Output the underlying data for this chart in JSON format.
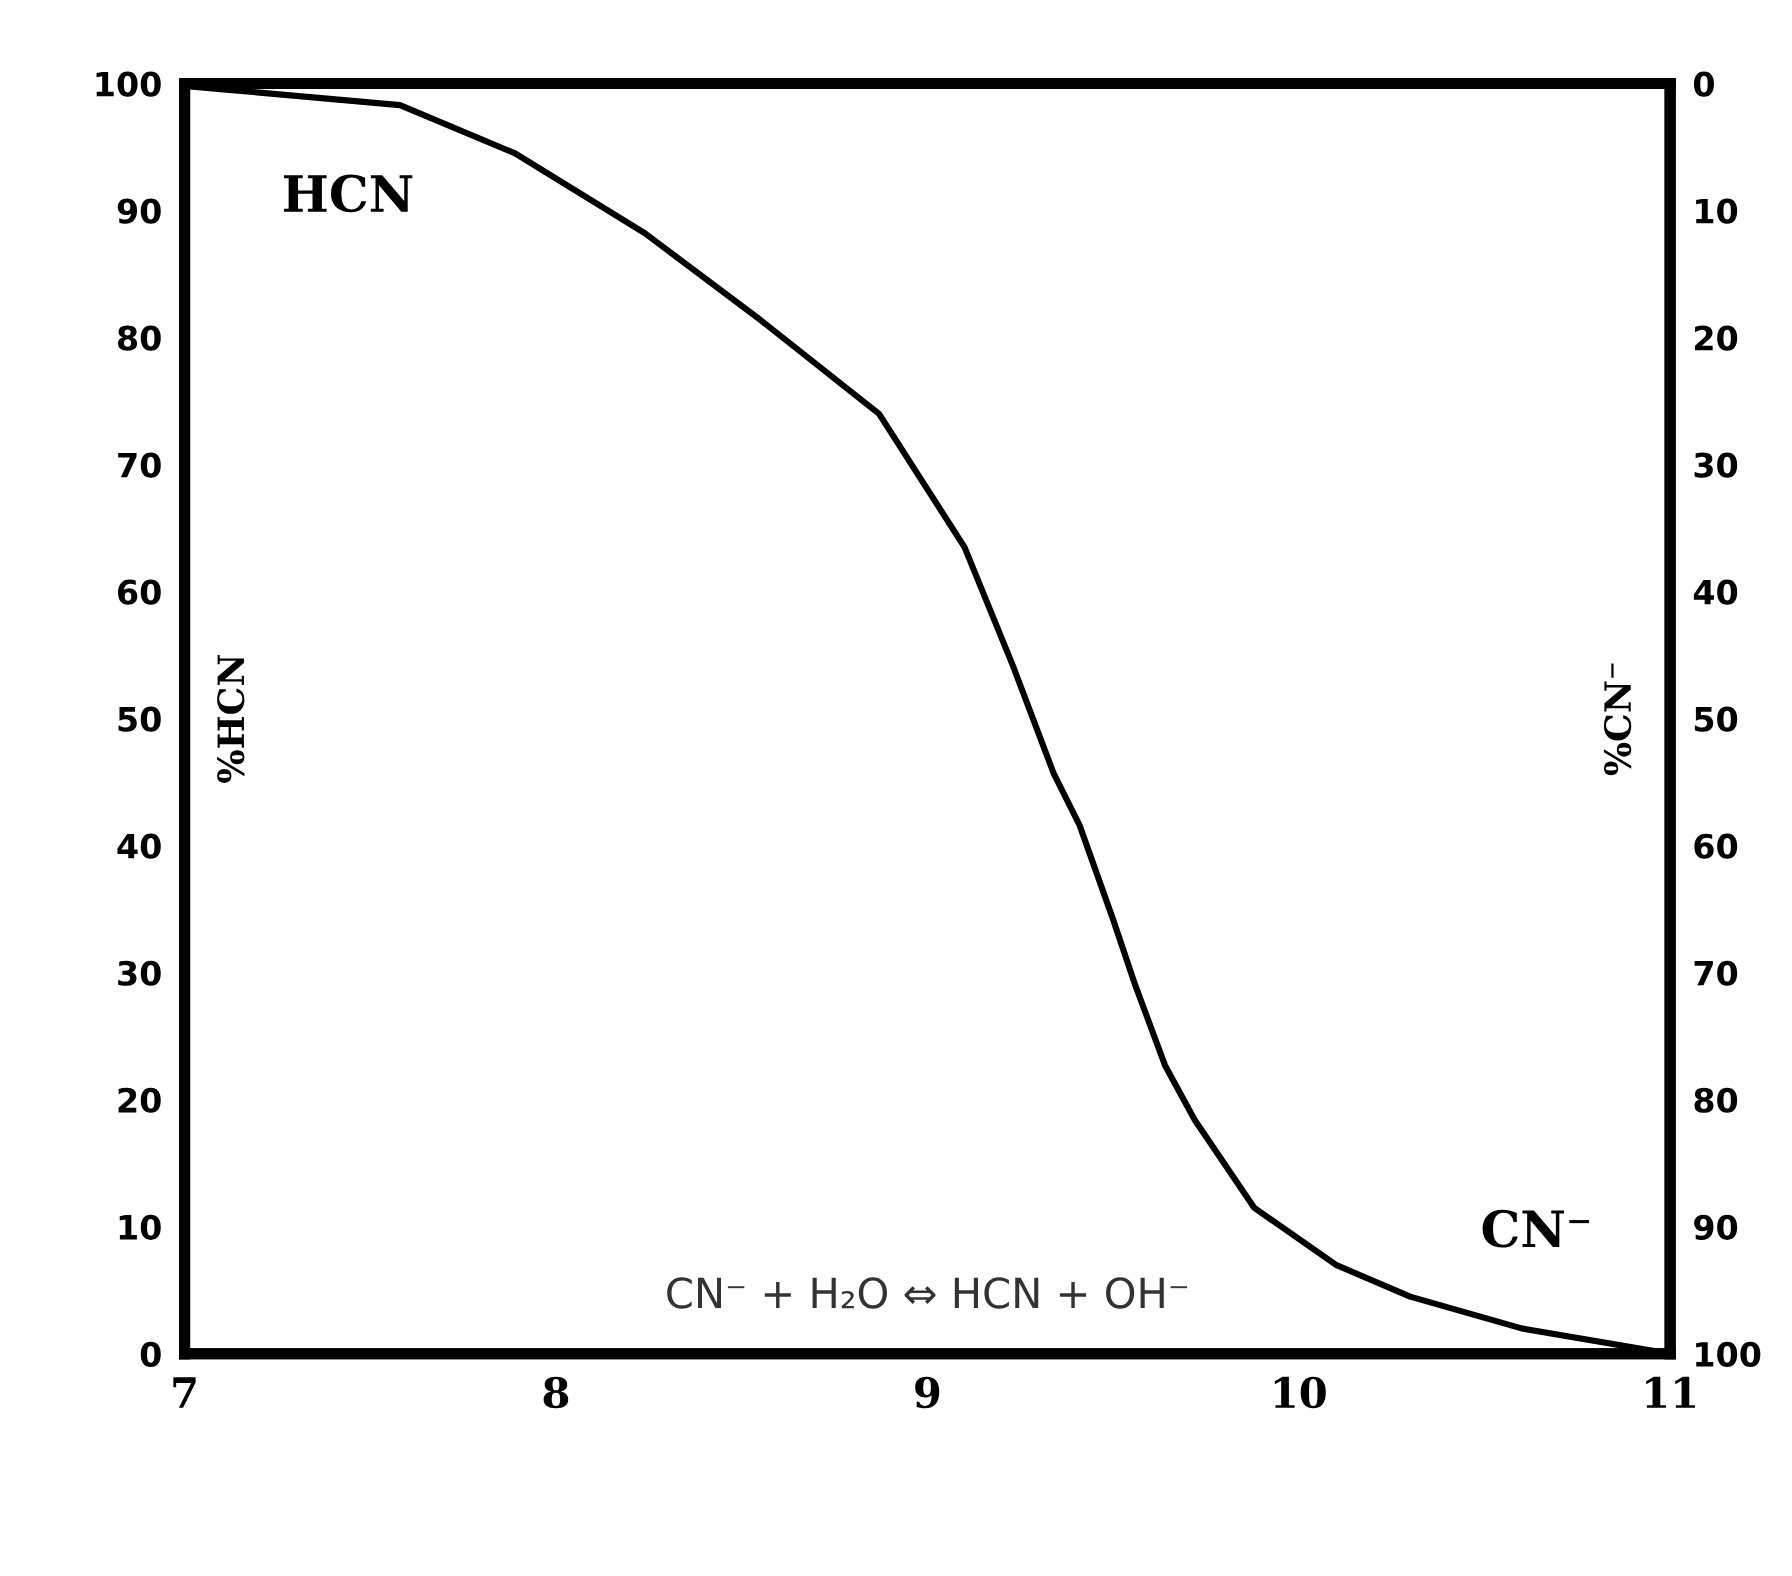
{
  "chart_data": {
    "type": "line",
    "ylabel": "%HCN",
    "y2label": "%CN⁻",
    "x": [
      7.0,
      7.12,
      7.58,
      7.89,
      8.24,
      8.55,
      8.87,
      9.1,
      9.23,
      9.34,
      9.41,
      9.5,
      9.56,
      9.64,
      9.72,
      9.88,
      10.1,
      10.3,
      10.6,
      11.0
    ],
    "series": [
      {
        "color": "#000000",
        "values": [
          99.8,
          99.5,
          98.3,
          94.5,
          88.2,
          81.4,
          74.0,
          63.5,
          54.2,
          45.7,
          41.6,
          34.2,
          29.0,
          22.7,
          18.4,
          11.5,
          7.0,
          4.5,
          2.0,
          0.0
        ]
      }
    ],
    "xlim": [
      7,
      11
    ],
    "xticks": [
      7,
      8,
      9,
      10,
      11
    ],
    "ylim": [
      0,
      100
    ],
    "yticks": [
      0,
      10,
      20,
      30,
      40,
      50,
      60,
      70,
      80,
      90,
      100
    ],
    "y2lim": [
      100,
      0
    ],
    "y2ticks": [
      0,
      10,
      20,
      30,
      40,
      50,
      60,
      70,
      80,
      90,
      100
    ],
    "annotations": [
      "HCN",
      "CN⁻",
      "CN⁻ + H₂O ⇔ HCN + OH⁻"
    ],
    "grid": false,
    "marker": "none",
    "line_style": "solid"
  }
}
